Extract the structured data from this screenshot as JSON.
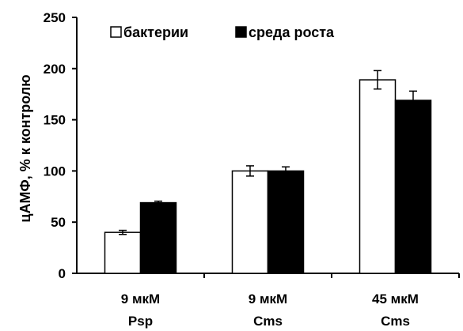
{
  "chart_data": {
    "type": "bar",
    "categories": [
      [
        "9 мкМ",
        "Psp"
      ],
      [
        "9 мкМ",
        "Cms"
      ],
      [
        "45 мкМ",
        "Cms"
      ]
    ],
    "series": [
      {
        "name": "бактерии",
        "values": [
          40,
          100,
          189
        ],
        "errors": [
          2,
          5,
          9
        ],
        "color": "#ffffff"
      },
      {
        "name": "среда роста",
        "values": [
          69,
          100,
          169
        ],
        "errors": [
          1.5,
          4,
          9
        ],
        "color": "#000000"
      }
    ],
    "ylabel": "цАМФ, % к контролю",
    "xlabel": "",
    "ylim": [
      0,
      250
    ],
    "yticks": [
      0,
      50,
      100,
      150,
      200,
      250
    ],
    "grid": false,
    "legend_position": "top-left"
  }
}
